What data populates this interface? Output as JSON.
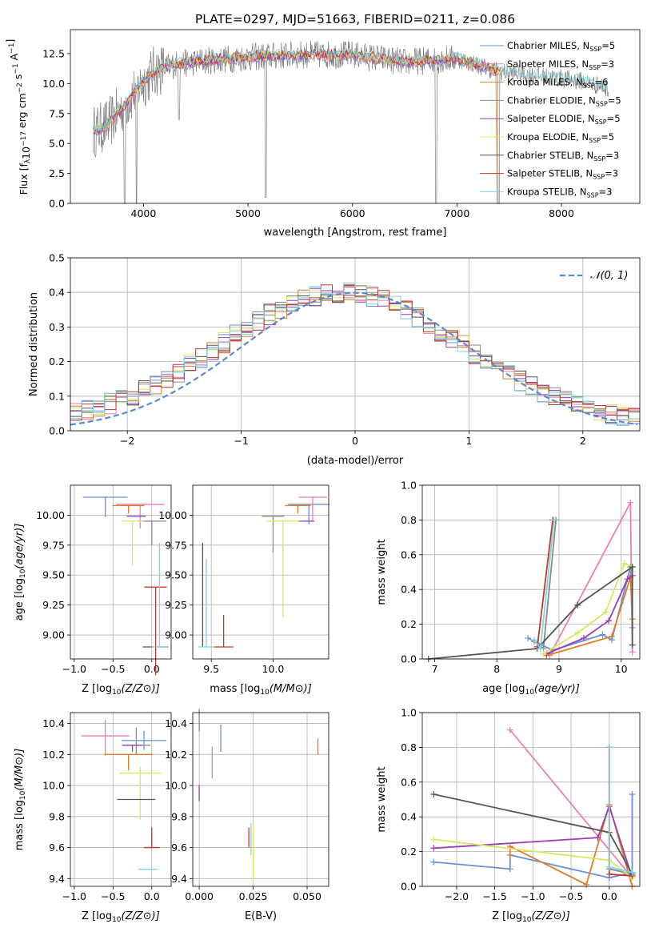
{
  "title": "PLATE=0297, MJD=51663, FIBERID=0211, z=0.086",
  "colors": [
    "#6a8fd8",
    "#e87fb7",
    "#e07b27",
    "#8a8a8a",
    "#9b3db5",
    "#d7e860",
    "#555555",
    "#c0392b",
    "#7fd5df"
  ],
  "chart_data": [
    {
      "id": "spectrum",
      "type": "line",
      "xlabel": "wavelength [Angstrom, rest frame]",
      "ylabel": "Flux [f",
      "ylabel_parts": [
        "Flux [f",
        "λ",
        "10",
        "−17",
        " erg cm",
        "−2",
        " s",
        "−1",
        " A",
        "−1",
        "]"
      ],
      "xlim": [
        3300,
        8750
      ],
      "ylim": [
        0,
        14.5
      ],
      "xticks": [
        4000,
        5000,
        6000,
        7000,
        8000
      ],
      "yticks": [
        0.0,
        2.5,
        5.0,
        7.5,
        10.0,
        12.5
      ],
      "legend": [
        "Chabrier MILES, N_SSP=5",
        "Salpeter MILES, N_SSP=3",
        "Kroupa MILES, N_SSP=6",
        "Chabrier ELODIE, N_SSP=5",
        "Salpeter ELODIE, N_SSP=5",
        "Kroupa ELODIE, N_SSP=5",
        "Chabrier STELIB, N_SSP=3",
        "Salpeter STELIB, N_SSP=3",
        "Kroupa STELIB, N_SSP=3"
      ],
      "legend_placement": "right",
      "profile_x": [
        3520,
        3650,
        3800,
        3950,
        4100,
        4300,
        4600,
        5000,
        5500,
        6000,
        6500,
        7000,
        7400,
        7800,
        8200,
        8450
      ],
      "profile_y": [
        6.0,
        6.5,
        8.0,
        9.7,
        11.0,
        11.6,
        11.9,
        12.2,
        12.4,
        12.4,
        11.8,
        12.1,
        11.0,
        10.6,
        10.2,
        9.6
      ],
      "dips": [
        [
          3820,
          0
        ],
        [
          3933,
          0
        ],
        [
          4340,
          7.0
        ],
        [
          5170,
          0.5
        ],
        [
          6800,
          0
        ],
        [
          7400,
          0
        ]
      ]
    },
    {
      "id": "residuals",
      "type": "line",
      "xlabel": "(data-model)/error",
      "ylabel": "Normed distribution",
      "xlim": [
        -2.5,
        2.5
      ],
      "ylim": [
        0,
        0.5
      ],
      "xticks": [
        -2,
        -1,
        0,
        1,
        2
      ],
      "yticks": [
        0.0,
        0.1,
        0.2,
        0.3,
        0.4,
        0.5
      ],
      "legend": [
        "𝒩(0, 1)"
      ],
      "legend_placement": "top-right",
      "grid": true
    },
    {
      "id": "age_vs_Z",
      "type": "scatter",
      "xlabel": "Z [log",
      "ylabel": "age  [log",
      "xlim": [
        -1.05,
        0.25
      ],
      "ylim": [
        8.8,
        10.25
      ],
      "xticks": [
        -1.0,
        -0.5,
        0.0
      ],
      "yticks": [
        9.0,
        9.25,
        9.5,
        9.75,
        10.0
      ],
      "points": [
        [
          -0.6,
          10.15
        ],
        [
          -0.15,
          10.09
        ],
        [
          -0.3,
          10.08
        ],
        [
          0.0,
          9.95
        ],
        [
          -0.2,
          9.99
        ],
        [
          -0.25,
          9.95
        ],
        [
          0.05,
          8.9
        ],
        [
          0.05,
          9.4
        ],
        [
          0.1,
          8.9
        ]
      ]
    },
    {
      "id": "age_vs_mass",
      "type": "scatter",
      "xlabel": "mass [log",
      "ylabel": "",
      "xlim": [
        9.35,
        10.45
      ],
      "ylim": [
        8.8,
        10.25
      ],
      "xticks": [
        9.5,
        10.0
      ],
      "yticks": [
        9.0,
        9.25,
        9.5,
        9.75,
        10.0
      ],
      "points": [
        [
          10.29,
          10.09
        ],
        [
          10.32,
          10.15
        ],
        [
          10.2,
          10.08
        ],
        [
          10.0,
          9.99
        ],
        [
          10.27,
          9.95
        ],
        [
          10.08,
          9.95
        ],
        [
          9.43,
          8.9
        ],
        [
          9.6,
          8.9
        ],
        [
          9.46,
          8.9
        ]
      ]
    },
    {
      "id": "weight_vs_age",
      "type": "line",
      "xlabel": "age  [log",
      "ylabel": "mass weight",
      "xlim": [
        6.8,
        10.3
      ],
      "ylim": [
        0,
        1.0
      ],
      "xticks": [
        7,
        8,
        9,
        10
      ],
      "yticks": [
        0.0,
        0.2,
        0.4,
        0.6,
        0.8,
        1.0
      ],
      "series": [
        {
          "x": [
            8.5,
            8.9,
            9.7,
            9.85,
            10.15,
            10.18
          ],
          "y": [
            0.12,
            0.05,
            0.14,
            0.11,
            0.53,
            0.18
          ]
        },
        {
          "x": [
            8.85,
            10.15,
            10.18
          ],
          "y": [
            0.02,
            0.9,
            0.04
          ]
        },
        {
          "x": [
            8.8,
            9.85,
            10.15,
            10.18
          ],
          "y": [
            0.02,
            0.13,
            0.47,
            0.23
          ]
        },
        {
          "x": [
            8.6,
            8.75,
            8.95
          ],
          "y": [
            0.1,
            0.06,
            0.8
          ]
        },
        {
          "x": [
            8.8,
            9.4,
            9.8,
            10.1,
            10.18
          ],
          "y": [
            0.03,
            0.12,
            0.22,
            0.46,
            0.48
          ]
        },
        {
          "x": [
            8.75,
            9.3,
            9.75,
            10.05,
            10.18
          ],
          "y": [
            0.03,
            0.15,
            0.27,
            0.55,
            0.53
          ]
        },
        {
          "x": [
            6.9,
            8.65,
            9.3,
            10.18,
            10.18
          ],
          "y": [
            0.0,
            0.06,
            0.31,
            0.53,
            0.08
          ]
        },
        {
          "x": [
            8.65,
            8.9
          ],
          "y": [
            0.07,
            0.8
          ]
        },
        {
          "x": [
            8.6,
            8.7,
            8.92
          ],
          "y": [
            0.11,
            0.06,
            0.8
          ]
        }
      ]
    },
    {
      "id": "mass_vs_Z",
      "type": "scatter",
      "xlabel": "Z [log",
      "ylabel": "mass [log",
      "xlim": [
        -1.05,
        0.25
      ],
      "ylim": [
        9.35,
        10.47
      ],
      "xticks": [
        -1.0,
        -0.5,
        0.0
      ],
      "yticks": [
        9.4,
        9.6,
        9.8,
        10.0,
        10.2,
        10.4
      ],
      "points": [
        [
          -0.1,
          10.29
        ],
        [
          -0.6,
          10.32
        ],
        [
          -0.3,
          10.2
        ],
        [
          -0.2,
          10.26
        ],
        [
          -0.25,
          10.26
        ],
        [
          -0.15,
          10.08
        ],
        [
          -0.2,
          9.91
        ],
        [
          0.0,
          9.6
        ],
        [
          -0.05,
          9.46
        ]
      ]
    },
    {
      "id": "mass_vs_ebv",
      "type": "scatter",
      "xlabel": "E(B-V)",
      "ylabel": "",
      "xlim": [
        -0.003,
        0.06
      ],
      "ylim": [
        9.35,
        10.47
      ],
      "xticks": [
        0.0,
        0.025,
        0.05
      ],
      "yticks": [
        9.4,
        9.6,
        9.8,
        10.0,
        10.2,
        10.4
      ],
      "points": [
        [
          0.01,
          10.29
        ],
        [
          0.006,
          10.2
        ],
        [
          0.055,
          10.2
        ],
        [
          0.0,
          10.35
        ],
        [
          0.0,
          9.9
        ],
        [
          0.025,
          9.6
        ],
        [
          0.027,
          9.6
        ],
        [
          0.023,
          9.6
        ],
        [
          0.024,
          9.55
        ]
      ]
    },
    {
      "id": "weight_vs_Z",
      "type": "line",
      "xlabel": "Z [log",
      "ylabel": "mass weight",
      "xlim": [
        -2.45,
        0.4
      ],
      "ylim": [
        0,
        1.0
      ],
      "xticks": [
        -2.0,
        -1.5,
        -1.0,
        -0.5,
        0.0
      ],
      "yticks": [
        0.0,
        0.2,
        0.4,
        0.6,
        0.8,
        1.0
      ],
      "series": [
        {
          "x": [
            -2.3,
            -1.3,
            -1.3,
            0.0,
            0.3,
            0.3
          ],
          "y": [
            0.14,
            0.1,
            0.18,
            0.05,
            0.08,
            0.53
          ]
        },
        {
          "x": [
            -1.3,
            0.3
          ],
          "y": [
            0.9,
            0.05
          ]
        },
        {
          "x": [
            -1.3,
            -1.3,
            -0.3,
            0.0,
            0.3
          ],
          "y": [
            0.18,
            0.23,
            0.01,
            0.47,
            0.0
          ]
        },
        {
          "x": [
            0.0,
            0.0,
            0.3
          ],
          "y": [
            0.8,
            0.1,
            0.07
          ]
        },
        {
          "x": [
            -2.3,
            -0.15,
            0.0,
            0.3
          ],
          "y": [
            0.22,
            0.28,
            0.46,
            0.05
          ]
        },
        {
          "x": [
            -2.3,
            0.0,
            0.3
          ],
          "y": [
            0.27,
            0.15,
            0.05
          ]
        },
        {
          "x": [
            -2.3,
            0.0,
            0.3
          ],
          "y": [
            0.53,
            0.31,
            0.07
          ]
        },
        {
          "x": [
            0.0,
            0.0,
            0.3
          ],
          "y": [
            0.8,
            0.07,
            0.06
          ]
        },
        {
          "x": [
            0.0,
            0.0,
            0.3
          ],
          "y": [
            0.8,
            0.11,
            0.08
          ]
        }
      ]
    }
  ]
}
